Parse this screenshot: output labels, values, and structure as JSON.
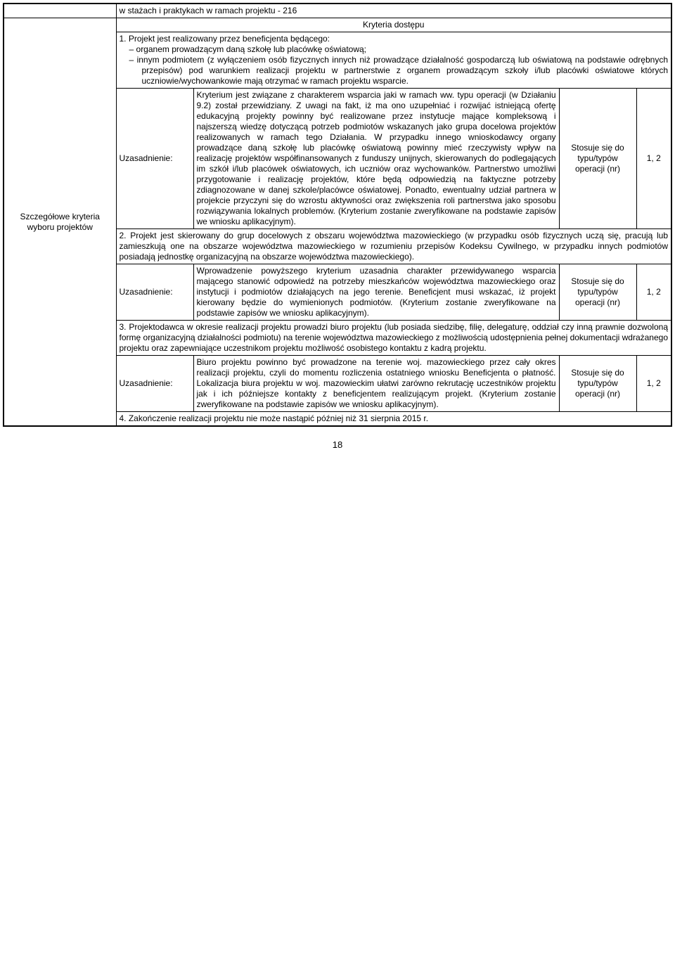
{
  "row_top": "w stażach i praktykach w ramach projektu - 216",
  "kryteria_header": "Kryteria dostępu",
  "side_label": "Szczegółowe kryteria wyboru projektów",
  "uzas_label": "Uzasadnienie:",
  "stos_label": "Stosuje się do typu/typów operacji (nr)",
  "num_label": "1, 2",
  "crit1_intro": "1. Projekt jest realizowany przez beneficjenta będącego:",
  "crit1_b1": "organem prowadzącym daną szkołę lub placówkę oświatową;",
  "crit1_b2": "innym podmiotem (z wyłączeniem osób fizycznych innych niż prowadzące działalność gospodarczą lub oświatową na podstawie odrębnych przepisów) pod warunkiem realizacji projektu w partnerstwie z organem prowadzącym szkoły i/lub placówki oświatowe których uczniowie/wychowankowie mają otrzymać w ramach projektu wsparcie.",
  "uzas1_text": "Kryterium jest związane z charakterem wsparcia jaki w ramach ww. typu operacji (w Działaniu 9.2) został przewidziany. Z uwagi na fakt, iż ma ono uzupełniać i rozwijać istniejącą ofertę edukacyjną projekty powinny być realizowane przez instytucje mające kompleksową i najszerszą wiedzę dotyczącą potrzeb podmiotów wskazanych jako grupa docelowa projektów realizowanych w ramach tego Działania. W przypadku innego wnioskodawcy organy prowadzące daną szkołę lub placówkę oświatową powinny mieć rzeczywisty wpływ na realizację projektów współfinansowanych z funduszy unijnych, skierowanych do podlegających im szkół i/lub placówek oświatowych, ich uczniów oraz wychowanków. Partnerstwo umożliwi przygotowanie i realizację projektów, które będą odpowiedzią na faktyczne potrzeby zdiagnozowane w danej szkole/placówce oświatowej. Ponadto, ewentualny udział partnera w projekcie przyczyni się do wzrostu aktywności oraz zwiększenia roli partnerstwa jako sposobu rozwiązywania lokalnych problemów. (Kryterium zostanie zweryfikowane na podstawie zapisów we wniosku aplikacyjnym).",
  "crit2_text": "2. Projekt jest skierowany do grup docelowych z obszaru województwa mazowieckiego (w przypadku osób fizycznych uczą się, pracują lub zamieszkują one na obszarze województwa mazowieckiego w rozumieniu przepisów Kodeksu Cywilnego, w przypadku innych podmiotów posiadają jednostkę organizacyjną na obszarze województwa mazowieckiego).",
  "uzas2_text": "Wprowadzenie powyższego kryterium uzasadnia charakter przewidywanego wsparcia mającego stanowić odpowiedź na potrzeby mieszkańców województwa mazowieckiego oraz instytucji i podmiotów działających na jego terenie. Beneficjent musi wskazać, iż projekt kierowany będzie do wymienionych podmiotów. (Kryterium zostanie zweryfikowane na podstawie zapisów we wniosku aplikacyjnym).",
  "crit3_text": "3. Projektodawca w okresie realizacji projektu prowadzi biuro projektu (lub posiada siedzibę, filię, delegaturę, oddział czy inną prawnie dozwoloną formę organizacyjną działalności podmiotu) na terenie województwa mazowieckiego z możliwością udostępnienia pełnej dokumentacji wdrażanego projektu oraz zapewniające uczestnikom projektu możliwość osobistego kontaktu z kadrą projektu.",
  "uzas3_text": "Biuro projektu powinno być prowadzone na terenie woj. mazowieckiego przez cały okres realizacji projektu, czyli do momentu rozliczenia ostatniego wniosku Beneficjenta o płatność. Lokalizacja biura projektu w woj. mazowieckim ułatwi zarówno rekrutację uczestników projektu jak i ich późniejsze kontakty z beneficjentem realizującym projekt. (Kryterium zostanie zweryfikowane na podstawie zapisów we wniosku aplikacyjnym).",
  "crit4_text": "4. Zakończenie realizacji projektu nie może nastąpić później niż 31 sierpnia 2015 r.",
  "page_number": "18"
}
